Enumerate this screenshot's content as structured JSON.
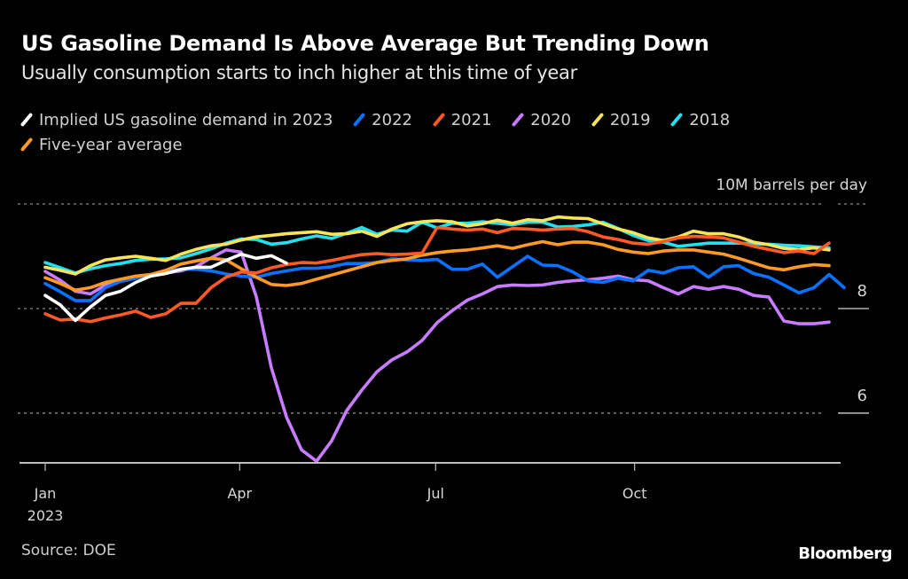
{
  "header": {
    "title": "US Gasoline Demand Is Above Average But Trending Down",
    "subtitle": "Usually consumption starts to inch higher at this time of year"
  },
  "footer": {
    "source": "Source: DOE",
    "brand": "Bloomberg"
  },
  "chart_data": {
    "type": "line",
    "title": "US Gasoline Demand Is Above Average But Trending Down",
    "subtitle": "Usually consumption starts to inch higher at this time of year",
    "xlabel": "",
    "ylabel": "10M barrels per day",
    "y_unit_label": "10M barrels per day",
    "ylim": [
      5.05,
      10
    ],
    "y_ticks": [
      {
        "value": 10,
        "label": ""
      },
      {
        "value": 8,
        "label": "8"
      },
      {
        "value": 6,
        "label": "6"
      }
    ],
    "x_unit": "week of year",
    "x_ticks": [
      {
        "week": 0,
        "label": "Jan",
        "sublabel": "2023"
      },
      {
        "week": 12.9,
        "label": "Apr",
        "sublabel": ""
      },
      {
        "week": 25.9,
        "label": "Jul",
        "sublabel": ""
      },
      {
        "week": 39.1,
        "label": "Oct",
        "sublabel": ""
      }
    ],
    "xlim": [
      0,
      54.7
    ],
    "grid": true,
    "legend_position": "top-left",
    "series": [
      {
        "name": "2018",
        "color": "#22e0f0",
        "values": [
          8.88,
          8.78,
          8.68,
          8.76,
          8.82,
          8.86,
          8.92,
          8.94,
          8.95,
          8.97,
          9.05,
          9.14,
          9.25,
          9.33,
          9.32,
          9.23,
          9.26,
          9.33,
          9.39,
          9.34,
          9.44,
          9.55,
          9.42,
          9.5,
          9.48,
          9.65,
          9.54,
          9.63,
          9.63,
          9.66,
          9.63,
          9.6,
          9.65,
          9.65,
          9.56,
          9.57,
          9.6,
          9.65,
          9.53,
          9.4,
          9.3,
          9.27,
          9.19,
          9.22,
          9.25,
          9.25,
          9.25,
          9.24,
          9.23,
          9.21,
          9.2,
          9.18,
          9.16
        ]
      },
      {
        "name": "2019",
        "color": "#f8e45c",
        "values": [
          8.79,
          8.73,
          8.66,
          8.82,
          8.93,
          8.97,
          9.0,
          8.96,
          8.92,
          9.04,
          9.13,
          9.2,
          9.23,
          9.31,
          9.37,
          9.4,
          9.43,
          9.45,
          9.47,
          9.42,
          9.43,
          9.48,
          9.38,
          9.52,
          9.62,
          9.66,
          9.68,
          9.66,
          9.58,
          9.62,
          9.69,
          9.63,
          9.7,
          9.68,
          9.75,
          9.73,
          9.72,
          9.62,
          9.52,
          9.45,
          9.35,
          9.3,
          9.37,
          9.48,
          9.43,
          9.43,
          9.37,
          9.27,
          9.22,
          9.15,
          9.13,
          9.16,
          9.12
        ]
      },
      {
        "name": "2021",
        "color": "#ff5a26",
        "values": [
          7.9,
          7.78,
          7.8,
          7.75,
          7.82,
          7.88,
          7.95,
          7.83,
          7.9,
          8.1,
          8.1,
          8.4,
          8.6,
          8.7,
          8.68,
          8.78,
          8.84,
          8.88,
          8.87,
          8.92,
          8.98,
          9.03,
          9.05,
          9.03,
          9.04,
          9.06,
          9.55,
          9.52,
          9.5,
          9.52,
          9.45,
          9.53,
          9.52,
          9.5,
          9.52,
          9.53,
          9.47,
          9.37,
          9.32,
          9.25,
          9.23,
          9.28,
          9.35,
          9.38,
          9.37,
          9.35,
          9.27,
          9.19,
          9.13,
          9.07,
          9.1,
          9.05,
          9.25
        ]
      },
      {
        "name": "Five-year average",
        "color": "#ff9a26",
        "values": [
          8.59,
          8.48,
          8.35,
          8.4,
          8.5,
          8.56,
          8.62,
          8.65,
          8.73,
          8.85,
          8.91,
          8.96,
          8.93,
          8.76,
          8.6,
          8.46,
          8.44,
          8.48,
          8.56,
          8.64,
          8.72,
          8.8,
          8.88,
          8.92,
          8.95,
          9.02,
          9.07,
          9.1,
          9.12,
          9.16,
          9.2,
          9.15,
          9.22,
          9.28,
          9.22,
          9.27,
          9.27,
          9.22,
          9.13,
          9.08,
          9.05,
          9.1,
          9.12,
          9.12,
          9.08,
          9.04,
          8.96,
          8.87,
          8.78,
          8.74,
          8.8,
          8.84,
          8.82
        ]
      },
      {
        "name": "2022",
        "color": "#0a72ff",
        "values": [
          8.48,
          8.32,
          8.15,
          8.15,
          8.4,
          8.52,
          8.58,
          8.65,
          8.72,
          8.75,
          8.75,
          8.72,
          8.66,
          8.62,
          8.6,
          8.67,
          8.72,
          8.77,
          8.77,
          8.8,
          8.86,
          8.86,
          8.88,
          8.95,
          8.93,
          8.92,
          8.94,
          8.75,
          8.75,
          8.85,
          8.6,
          8.8,
          9.0,
          8.83,
          8.82,
          8.7,
          8.53,
          8.5,
          8.58,
          8.53,
          8.73,
          8.68,
          8.78,
          8.8,
          8.6,
          8.8,
          8.82,
          8.67,
          8.6,
          8.45,
          8.3,
          8.4,
          8.65,
          8.4
        ]
      },
      {
        "name": "2020",
        "color": "#c87cff",
        "values": [
          8.71,
          8.54,
          8.33,
          8.28,
          8.45,
          8.55,
          8.6,
          8.63,
          8.68,
          8.72,
          8.8,
          8.97,
          9.12,
          9.08,
          8.23,
          6.87,
          5.93,
          5.3,
          5.08,
          5.47,
          6.05,
          6.44,
          6.79,
          7.02,
          7.17,
          7.39,
          7.73,
          7.96,
          8.16,
          8.28,
          8.42,
          8.45,
          8.44,
          8.45,
          8.5,
          8.53,
          8.55,
          8.58,
          8.62,
          8.55,
          8.53,
          8.4,
          8.28,
          8.42,
          8.37,
          8.42,
          8.37,
          8.25,
          8.22,
          7.76,
          7.71,
          7.71,
          7.74
        ]
      },
      {
        "name": "Implied US gasoline demand in 2023",
        "color": "#ffffff",
        "values": [
          8.25,
          8.07,
          7.77,
          8.03,
          8.25,
          8.33,
          8.5,
          8.62,
          8.67,
          8.75,
          8.79,
          8.79,
          8.92,
          9.04,
          8.96,
          9.01,
          8.87
        ]
      }
    ]
  },
  "legend": [
    {
      "label": "Implied US gasoline demand in 2023",
      "color": "#ffffff"
    },
    {
      "label": "2022",
      "color": "#0a72ff"
    },
    {
      "label": "2021",
      "color": "#ff5a26"
    },
    {
      "label": "2020",
      "color": "#c87cff"
    },
    {
      "label": "2019",
      "color": "#f8e45c"
    },
    {
      "label": "2018",
      "color": "#22e0f0"
    },
    {
      "label": "Five-year average",
      "color": "#ff9a26"
    }
  ]
}
